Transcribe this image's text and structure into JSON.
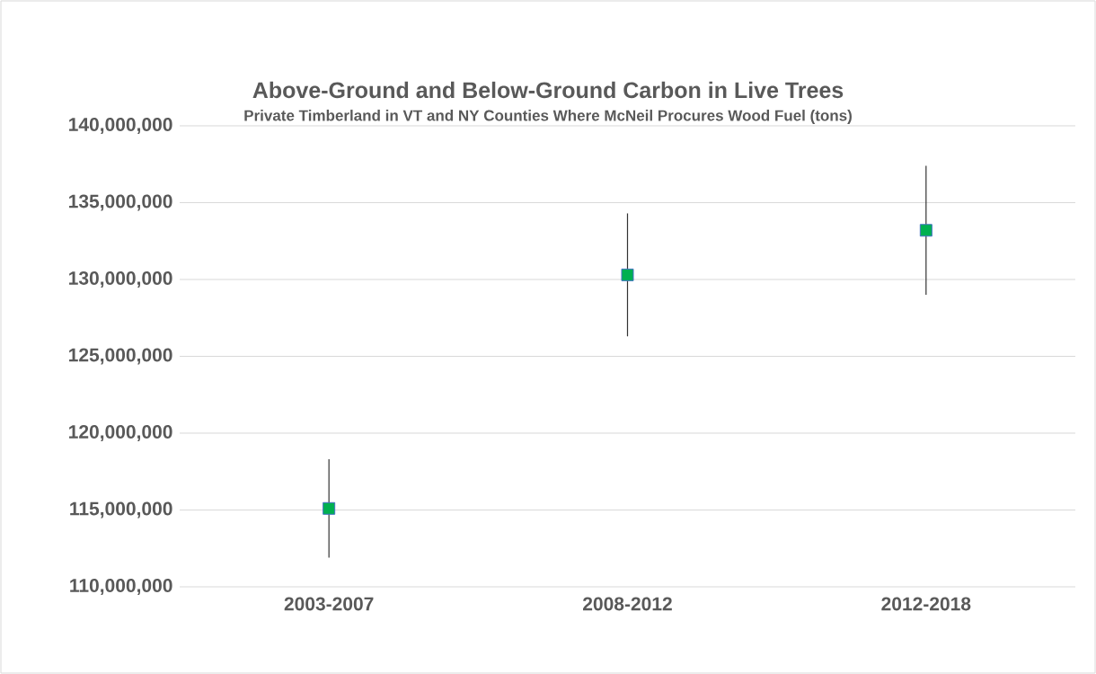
{
  "chart_data": {
    "type": "scatter",
    "title": "Above-Ground and Below-Ground Carbon in Live Trees",
    "subtitle": "Private Timberland in VT and NY Counties Where McNeil Procures Wood Fuel (tons)",
    "categories": [
      "2003-2007",
      "2008-2012",
      "2012-2018"
    ],
    "values": [
      115100000,
      130300000,
      133200000
    ],
    "errors": [
      3200000,
      4000000,
      4200000
    ],
    "color": "#00b050",
    "marker": "square",
    "ylim": [
      110000000,
      140000000
    ],
    "yticks": [
      {
        "value": 110000000,
        "label": "110,000,000"
      },
      {
        "value": 115000000,
        "label": "115,000,000"
      },
      {
        "value": 120000000,
        "label": "120,000,000"
      },
      {
        "value": 125000000,
        "label": "125,000,000"
      },
      {
        "value": 130000000,
        "label": "130,000,000"
      },
      {
        "value": 135000000,
        "label": "135,000,000"
      },
      {
        "value": 140000000,
        "label": "140,000,000"
      }
    ],
    "grid": "y"
  }
}
